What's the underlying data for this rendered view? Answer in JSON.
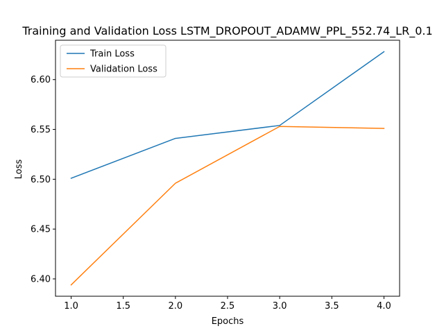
{
  "chart_data": {
    "type": "line",
    "title": "Training and Validation Loss LSTM_DROPOUT_ADAMW_PPL_552.74_LR_0.1",
    "xlabel": "Epochs",
    "ylabel": "Loss",
    "x": [
      1.0,
      2.0,
      3.0,
      4.0
    ],
    "xlim": [
      0.85,
      4.15
    ],
    "ylim": [
      6.3826,
      6.6395
    ],
    "xticks": [
      1.0,
      1.5,
      2.0,
      2.5,
      3.0,
      3.5,
      4.0
    ],
    "xtick_labels": [
      "1.0",
      "1.5",
      "2.0",
      "2.5",
      "3.0",
      "3.5",
      "4.0"
    ],
    "yticks": [
      6.4,
      6.45,
      6.5,
      6.55,
      6.6
    ],
    "ytick_labels": [
      "6.40",
      "6.45",
      "6.50",
      "6.55",
      "6.60"
    ],
    "grid": false,
    "legend_position": "top-left",
    "series": [
      {
        "name": "Train Loss",
        "color": "#1f77b4",
        "values": [
          6.501,
          6.541,
          6.554,
          6.628
        ]
      },
      {
        "name": "Validation Loss",
        "color": "#ff7f0e",
        "values": [
          6.394,
          6.496,
          6.553,
          6.551
        ]
      }
    ]
  }
}
